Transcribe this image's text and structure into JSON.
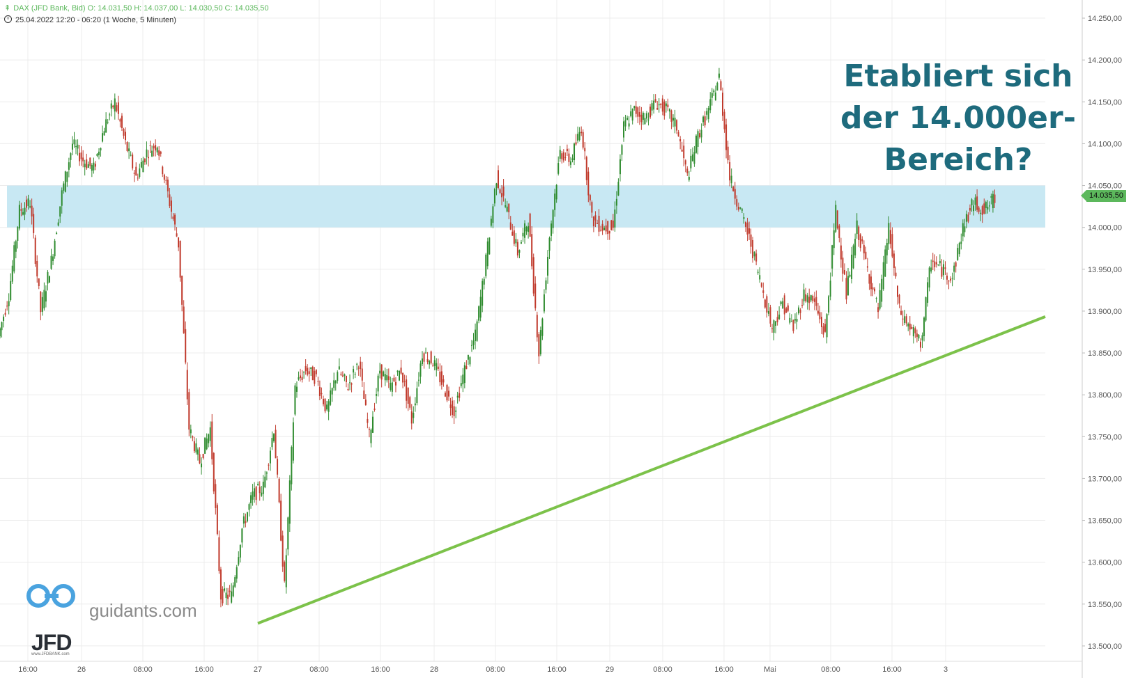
{
  "header": {
    "ohlc": "DAX (JFD Bank, Bid)   O: 14.031,50   H: 14.037,00   L: 14.030,50   C: 14.035,50",
    "date_range": "25.04.2022 12:20 - 06:20   (1 Woche, 5 Minuten)"
  },
  "headline": {
    "line1": "Etabliert sich",
    "line2": "der 14.000er-",
    "line3": "Bereich?"
  },
  "price_label": "14.035,50",
  "logo": {
    "site": "guidants.com",
    "brand": "JFD",
    "brand_sub": "www.JFDBANK.com"
  },
  "colors": {
    "up": "#2e8b2e",
    "down": "#c0392b",
    "zone": "#c8e8f3",
    "trendline": "#7cc24a",
    "headline": "#1e6b7d",
    "grid": "#ececec"
  },
  "chart_data": {
    "type": "line",
    "title": "DAX (JFD Bank, Bid)",
    "timeframe": "5 Minuten",
    "period": "1 Woche",
    "x_ticks": [
      "16:00",
      "26",
      "08:00",
      "16:00",
      "27",
      "08:00",
      "16:00",
      "28",
      "08:00",
      "16:00",
      "29",
      "08:00",
      "16:00",
      "Mai",
      "08:00",
      "16:00",
      "3"
    ],
    "y_ticks": [
      "14.250,00",
      "14.200,00",
      "14.150,00",
      "14.100,00",
      "14.050,00",
      "14.000,00",
      "13.950,00",
      "13.900,00",
      "13.850,00",
      "13.800,00",
      "13.750,00",
      "13.700,00",
      "13.650,00",
      "13.600,00",
      "13.550,00",
      "13.500,00"
    ],
    "ylim": [
      13475,
      14265
    ],
    "series": [
      {
        "values": [
          13870,
          13920,
          14020,
          14030,
          13900,
          13960,
          14040,
          14100,
          14080,
          14070,
          14120,
          14150,
          14100,
          14060,
          14090,
          14100,
          14040,
          13980,
          13760,
          13720,
          13760,
          13560,
          13560,
          13640,
          13680,
          13690,
          13760,
          13570,
          13810,
          13830,
          13820,
          13780,
          13830,
          13810,
          13840,
          13750,
          13830,
          13810,
          13830,
          13770,
          13850,
          13840,
          13810,
          13780,
          13830,
          13870,
          13960,
          14060,
          14020,
          13970,
          14010,
          13850,
          13990,
          14090,
          14080,
          14120,
          14010,
          14000,
          14000,
          14120,
          14140,
          14130,
          14150,
          14140,
          14120,
          14060,
          14110,
          14140,
          14180,
          14060,
          14020,
          13980,
          13930,
          13880,
          13910,
          13880,
          13920,
          13910,
          13870,
          14020,
          13920,
          14000,
          13950,
          13900,
          14000,
          13900,
          13880,
          13860,
          13960,
          13950,
          13940,
          14000,
          14030,
          14020,
          14035
        ]
      }
    ],
    "price_zone": [
      14000,
      14050
    ],
    "trendline": [
      {
        "x": "27",
        "y": 13527
      },
      {
        "x": "3",
        "y": 13847
      }
    ],
    "last_price": 14035.5,
    "grid": true
  }
}
